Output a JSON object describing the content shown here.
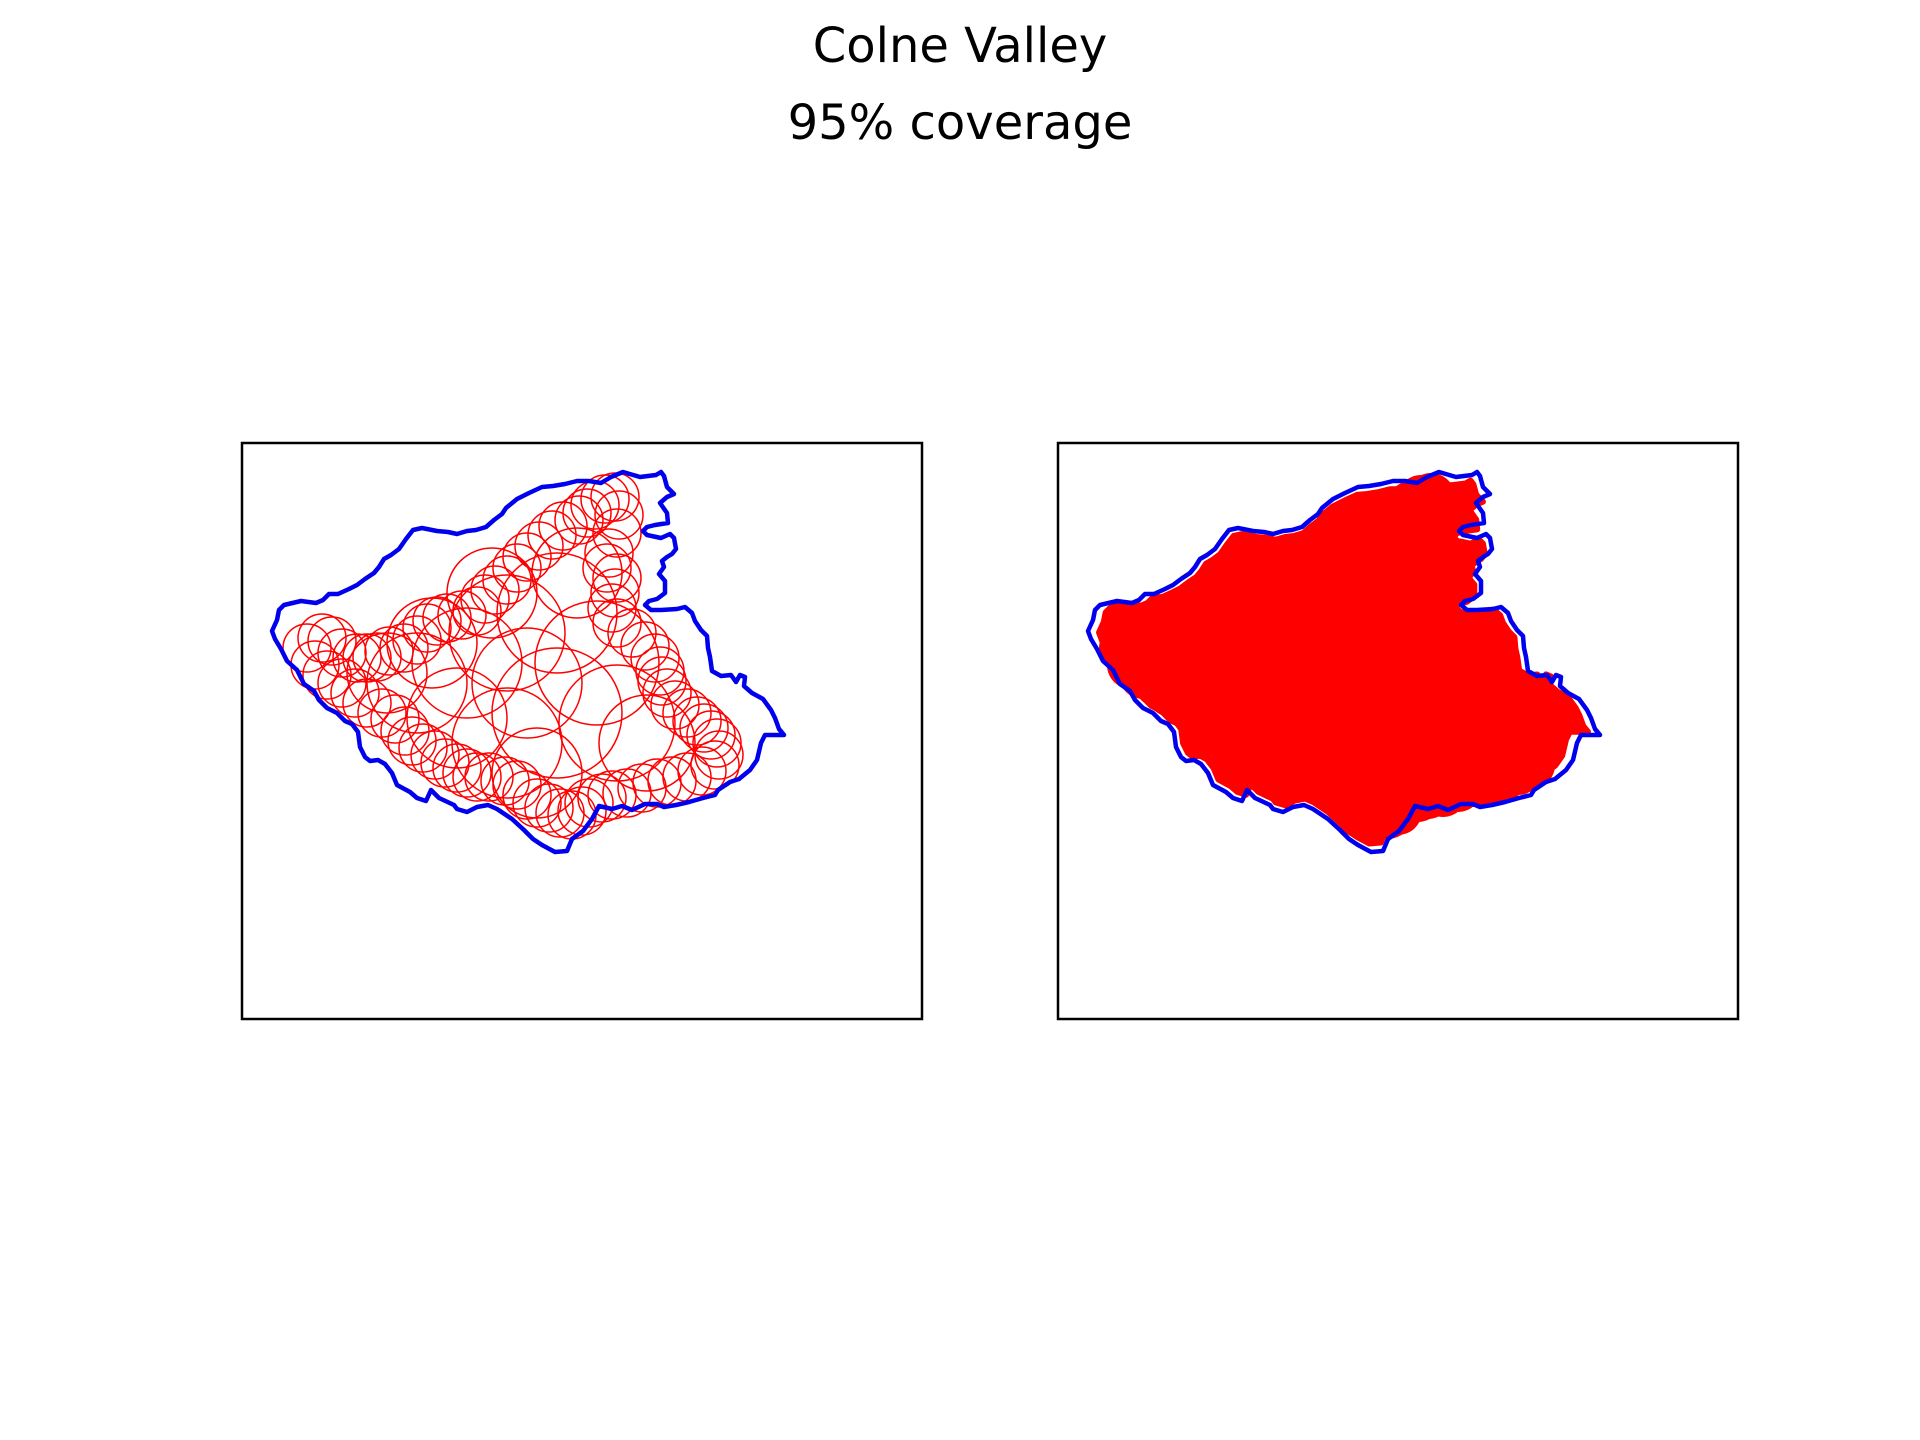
{
  "figure": {
    "title": "Colne Valley",
    "subtitle": "95% coverage"
  },
  "panels": [
    {
      "id": "outline-circles",
      "fill": "none"
    },
    {
      "id": "filled-coverage",
      "fill": "#ff0000"
    }
  ],
  "colors": {
    "boundary": "#0000ee",
    "coverage": "#ff0000",
    "frame": "#000000"
  }
}
